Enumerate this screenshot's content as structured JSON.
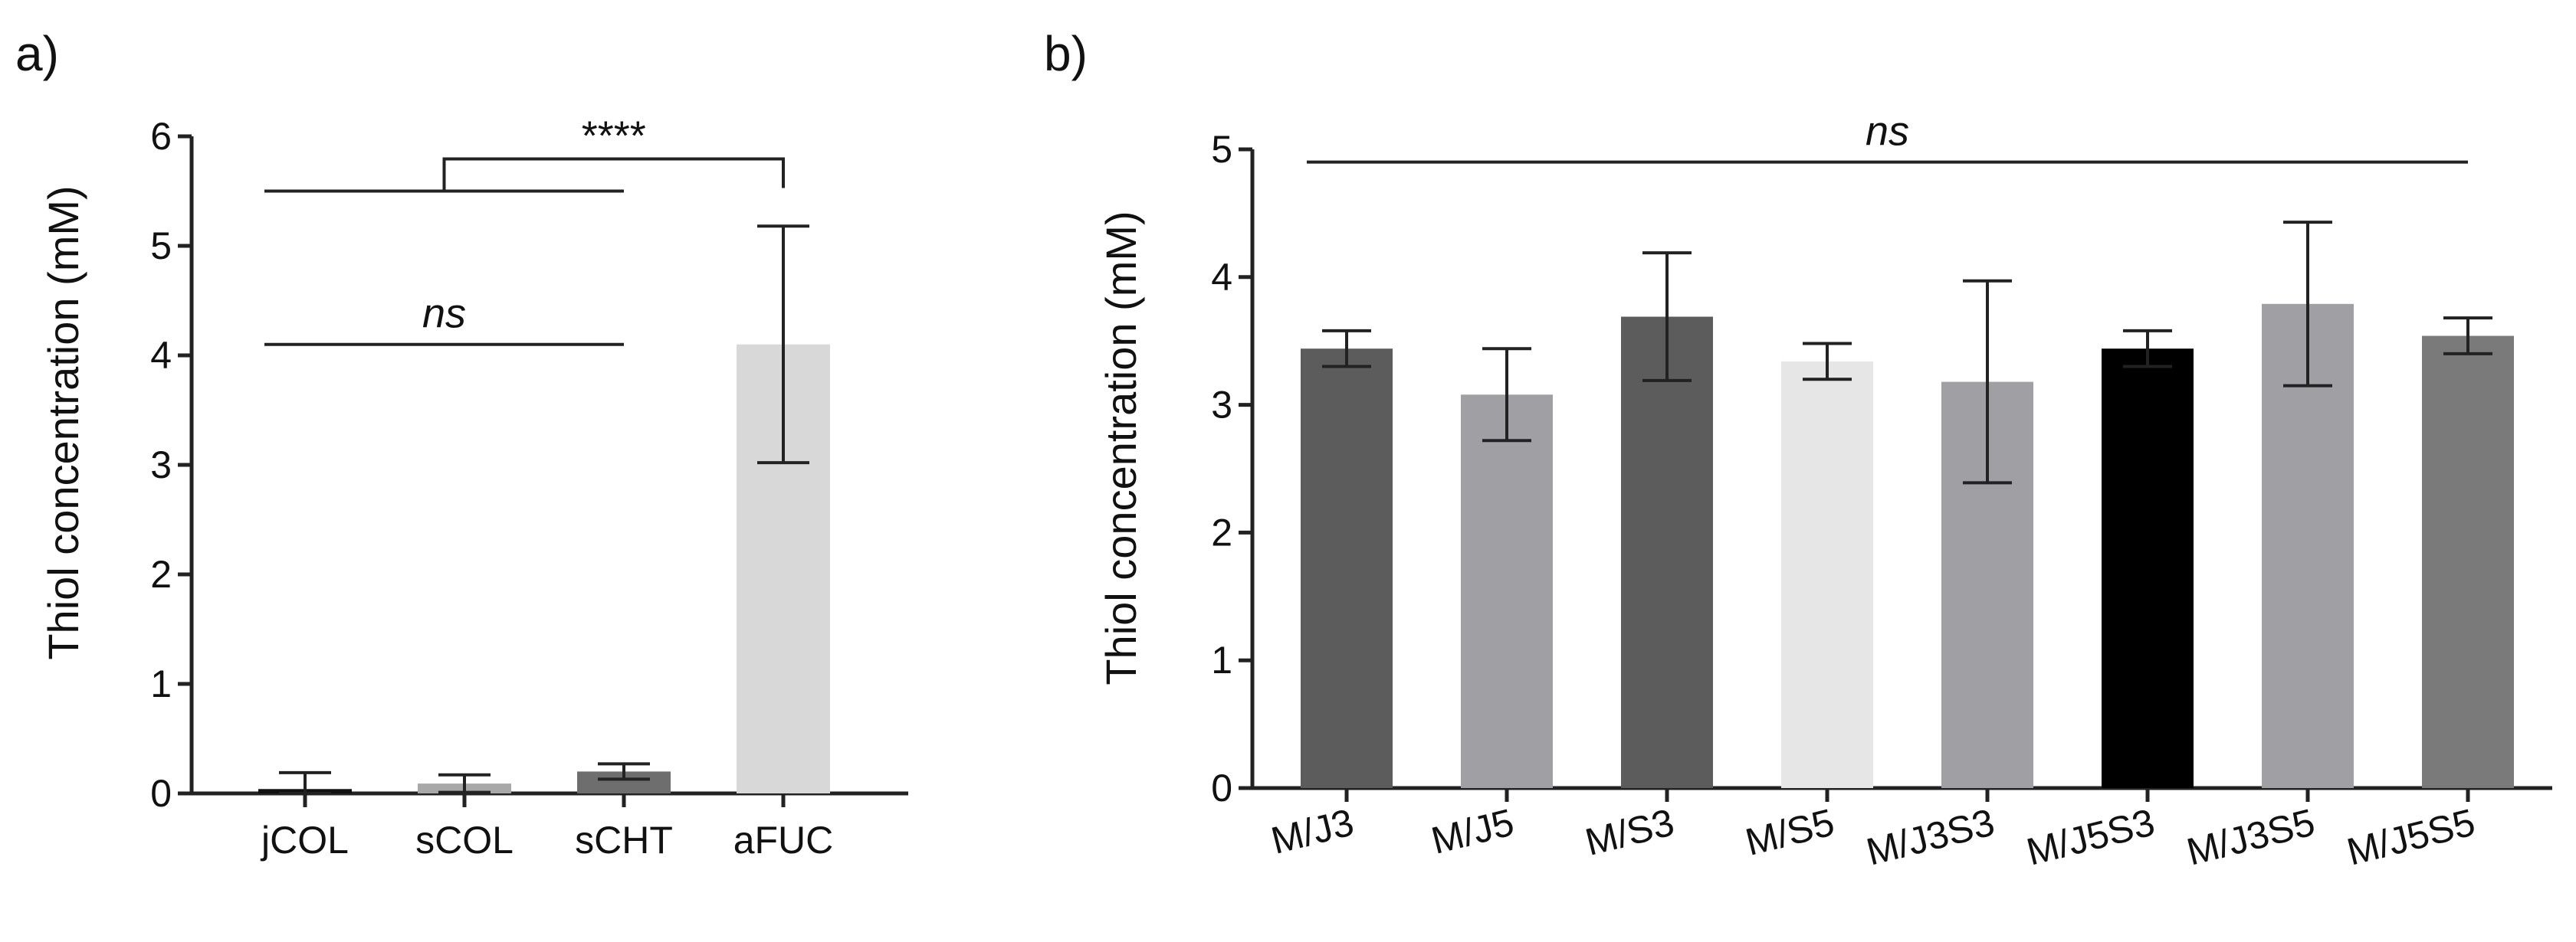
{
  "chart_data": [
    {
      "panel_label": "a)",
      "type": "bar",
      "ylabel": "Thiol concentration (mM)",
      "xlabel": "",
      "ylim": [
        0,
        6
      ],
      "yticks": [
        "0",
        "1",
        "2",
        "3",
        "4",
        "5",
        "6"
      ],
      "categories": [
        "jCOL",
        "sCOL",
        "sCHT",
        "aFUC"
      ],
      "values": [
        0.04,
        0.09,
        0.2,
        4.1
      ],
      "errors": [
        0.15,
        0.08,
        0.07,
        1.08
      ],
      "colors": [
        "#111111",
        "#a8a8a8",
        "#6e6e6e",
        "#d8d8d8"
      ],
      "annotations": [
        {
          "text": "****",
          "kind": "bracket",
          "from": [
            "jCOL",
            "sCHT"
          ],
          "to": "aFUC",
          "y": 5.5
        },
        {
          "text": "ns",
          "kind": "line",
          "from": "jCOL",
          "to": "sCHT",
          "y": 4.1
        }
      ]
    },
    {
      "panel_label": "b)",
      "type": "bar",
      "ylabel": "Thiol concentration (mM)",
      "xlabel": "",
      "ylim": [
        0,
        5
      ],
      "yticks": [
        "0",
        "1",
        "2",
        "3",
        "4",
        "5"
      ],
      "categories": [
        "M/J3",
        "M/J5",
        "M/S3",
        "M/S5",
        "M/J3S3",
        "M/J5S3",
        "M/J3S5",
        "M/J5S5"
      ],
      "values": [
        3.44,
        3.08,
        3.69,
        3.34,
        3.18,
        3.44,
        3.79,
        3.54
      ],
      "errors": [
        0.14,
        0.36,
        0.5,
        0.14,
        0.79,
        0.14,
        0.64,
        0.14
      ],
      "colors": [
        "#5c5c5c",
        "#a0a0a4",
        "#5c5c5c",
        "#e6e6e6",
        "#a0a0a4",
        "#000000",
        "#a0a0a4",
        "#7a7a7a"
      ],
      "annotations": [
        {
          "text": "ns",
          "kind": "line",
          "from": "M/J3",
          "to": "M/J5S5",
          "y": 4.9
        }
      ]
    }
  ]
}
